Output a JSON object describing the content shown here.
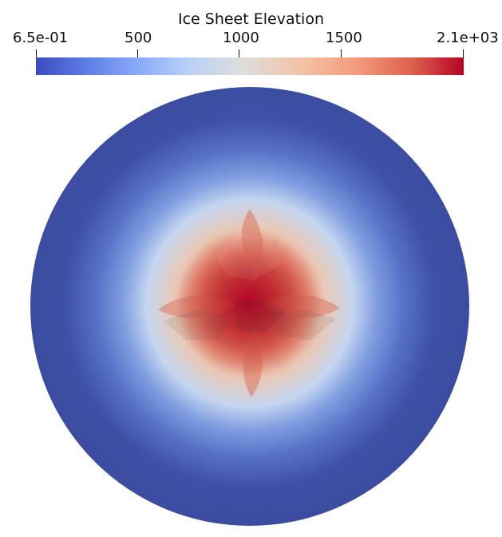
{
  "colorbar": {
    "title": "Ice Sheet Elevation",
    "ticks": [
      "6.5e-01",
      "500",
      "1000",
      "1500",
      "2.1e+03"
    ],
    "colormap": [
      "#3b4cc0",
      "#dddddd",
      "#b40426"
    ]
  },
  "map": {
    "background_color": "#3b4ca1",
    "center_color": "#b40426"
  }
}
